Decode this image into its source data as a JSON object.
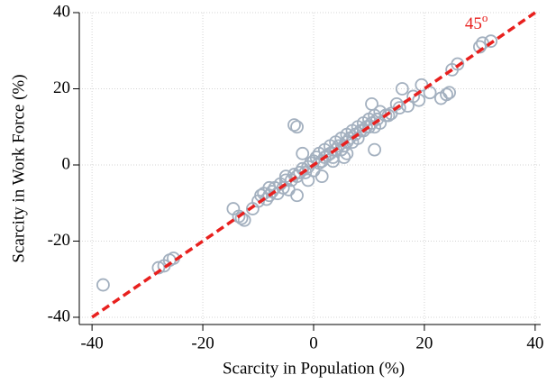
{
  "chart_data": {
    "type": "scatter",
    "x_label": "Scarcity in Population (%)",
    "y_label": "Scarcity in Work Force (%)",
    "xlim": [
      -42.3,
      41
    ],
    "ylim": [
      -41.9,
      40
    ],
    "xticks": [
      -40,
      -20,
      0,
      20,
      40
    ],
    "yticks": [
      -40,
      -20,
      0,
      20,
      40
    ],
    "grid": true,
    "color": "#a3b0bf",
    "x": [
      -38,
      -28,
      -27,
      -26,
      -25.3,
      -14.5,
      -13.5,
      -13,
      -12.5,
      -11,
      -10,
      -9.5,
      -9,
      -8.5,
      -8,
      -7.5,
      -7,
      -6.5,
      -6,
      -5.5,
      -5,
      -4.5,
      -4,
      -3.5,
      -3,
      -3,
      -2.5,
      -2,
      -1.5,
      -1,
      -0.5,
      0,
      0,
      0.5,
      1,
      1,
      1.5,
      2,
      2,
      2.5,
      3,
      3,
      3.5,
      4,
      4,
      4.5,
      5,
      5,
      5.5,
      6,
      6,
      6.5,
      7,
      7,
      7.5,
      8,
      8,
      8.5,
      9,
      9,
      9.5,
      10,
      10,
      10.5,
      11,
      11,
      11.5,
      12,
      12,
      13,
      13.5,
      14,
      15,
      15.5,
      16,
      17,
      18,
      19,
      19.5,
      21,
      23,
      24,
      24.5,
      25,
      26,
      30,
      30.5,
      32,
      -3,
      -3.5,
      11,
      10.5,
      6,
      -1,
      1.5,
      -2,
      -8,
      3.5,
      -5,
      5.5
    ],
    "y": [
      -31.5,
      -27,
      -26.5,
      -25,
      -24.5,
      -11.5,
      -13.5,
      -14,
      -14.5,
      -11.5,
      -9.5,
      -8,
      -7.5,
      -9,
      -8,
      -7,
      -6,
      -7.5,
      -5,
      -6,
      -4,
      -6.5,
      -4,
      -2.5,
      -3,
      -8,
      -2,
      -1,
      -2,
      -0.5,
      0.5,
      1,
      -1.5,
      2,
      0.5,
      3,
      1,
      2,
      4,
      2.5,
      3,
      5,
      2,
      4,
      6,
      5,
      4,
      7,
      5,
      6,
      8,
      7,
      6,
      9,
      8,
      7,
      10,
      9,
      9,
      11,
      10,
      10,
      12,
      11,
      10,
      13,
      12,
      11,
      14,
      13,
      13,
      13.5,
      16,
      15,
      20,
      15.5,
      18,
      17,
      21,
      19,
      17.5,
      18.5,
      19,
      25,
      26.5,
      31,
      32,
      32.5,
      10,
      10.5,
      4,
      16,
      3,
      -4,
      -3,
      3,
      -6,
      1,
      -3,
      2
    ],
    "reference_line": {
      "x": [
        -40,
        40
      ],
      "y": [
        -40,
        40
      ],
      "color": "#e8201e"
    },
    "annotation": "45",
    "annotation_superscript": "o"
  }
}
